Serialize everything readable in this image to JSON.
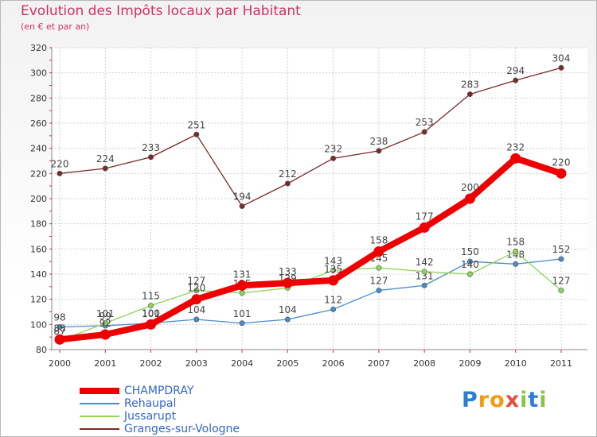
{
  "chart_data": {
    "type": "line",
    "title": "Evolution des Impôts locaux par Habitant",
    "subtitle": "(en € et par an)",
    "xlabel": "",
    "ylabel": "",
    "ylim": [
      80,
      320
    ],
    "yticks": [
      80,
      100,
      120,
      140,
      160,
      180,
      200,
      220,
      240,
      260,
      280,
      300,
      320
    ],
    "grid": true,
    "categories": [
      "2000",
      "2001",
      "2002",
      "2003",
      "2004",
      "2005",
      "2006",
      "2007",
      "2008",
      "2009",
      "2010",
      "2011"
    ],
    "series": [
      {
        "name": "Granges-sur-Vologne",
        "color": "#7a2a2a",
        "values": [
          220,
          224,
          233,
          251,
          194,
          212,
          232,
          238,
          253,
          283,
          294,
          304
        ]
      },
      {
        "name": "Rehaupal",
        "color": "#4a8bc9",
        "values": [
          98,
          99,
          101,
          104,
          101,
          104,
          112,
          127,
          131,
          150,
          148,
          152
        ]
      },
      {
        "name": "Jussarupt",
        "color": "#8ed45a",
        "values": [
          87,
          101,
          115,
          127,
          125,
          129,
          143,
          145,
          142,
          140,
          158,
          127
        ]
      },
      {
        "name": "CHAMPDRAY",
        "color": "#ee0000",
        "values": [
          88,
          92,
          100,
          120,
          131,
          133,
          135,
          158,
          177,
          200,
          232,
          220
        ]
      }
    ],
    "legend": [
      "CHAMPDRAY",
      "Rehaupal",
      "Jussarupt",
      "Granges-sur-Vologne"
    ],
    "legend_position": "bottom-left"
  },
  "logo_text": "Proxiti",
  "logo_letters": [
    "P",
    "r",
    "o",
    "x",
    "i",
    "t",
    "i"
  ]
}
